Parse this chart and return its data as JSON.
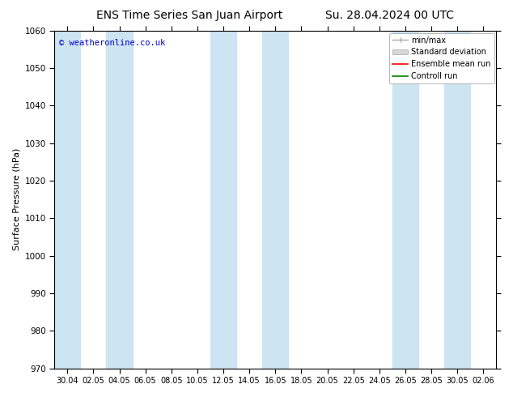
{
  "title_left": "ENS Time Series San Juan Airport",
  "title_right": "Su. 28.04.2024 00 UTC",
  "ylabel": "Surface Pressure (hPa)",
  "watermark": "© weatheronline.co.uk",
  "watermark_color": "#0000cc",
  "ylim": [
    970,
    1060
  ],
  "yticks": [
    970,
    980,
    990,
    1000,
    1010,
    1020,
    1030,
    1040,
    1050,
    1060
  ],
  "xtick_labels": [
    "30.04",
    "02.05",
    "04.05",
    "06.05",
    "08.05",
    "10.05",
    "12.05",
    "14.05",
    "16.05",
    "18.05",
    "20.05",
    "22.05",
    "24.05",
    "26.05",
    "28.05",
    "30.05",
    "02.06"
  ],
  "shade_color": "#cde4f3",
  "bg_color": "#ffffff",
  "legend_labels": [
    "min/max",
    "Standard deviation",
    "Ensemble mean run",
    "Controll run"
  ],
  "legend_colors": [
    "#aaaaaa",
    "#cccccc",
    "#ff0000",
    "#008000"
  ],
  "title_fontsize": 10,
  "axis_fontsize": 8,
  "tick_fontsize": 7.5
}
